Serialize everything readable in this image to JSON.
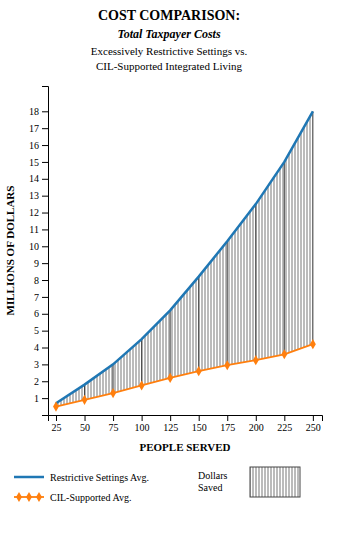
{
  "chart_data": {
    "type": "line",
    "title": "COST COMPARISON:",
    "subtitle": [
      "Total Taxpayer Costs",
      "Excessively Restrictive Settings vs.",
      "CIL-Supported Integrated Living"
    ],
    "x_label": "PEOPLE SERVED",
    "y_label": "MILLIONS OF DOLLARS",
    "x": [
      25,
      50,
      75,
      100,
      125,
      150,
      175,
      200,
      225,
      250
    ],
    "series": [
      {
        "name": "Restrictive Settings Avg.",
        "values": [
          0.7,
          1.8,
          3.0,
          4.5,
          6.2,
          8.2,
          10.3,
          12.5,
          15.0,
          18.0
        ]
      },
      {
        "name": "CIL-Supported Avg.",
        "marker": "diamond",
        "values": [
          0.5,
          0.9,
          1.3,
          1.75,
          2.2,
          2.6,
          2.95,
          3.25,
          3.6,
          4.2
        ]
      }
    ],
    "annotations": [
      "Dollars\nSaved"
    ],
    "xlim": [
      18,
      258
    ],
    "ylim": [
      0,
      19.5
    ],
    "xticks": [
      25,
      50,
      75,
      100,
      125,
      150,
      175,
      200,
      225,
      250
    ],
    "yticks": [
      1,
      2,
      3,
      4,
      5,
      6,
      7,
      8,
      9,
      10,
      11,
      12,
      13,
      14,
      15,
      16,
      17,
      18
    ],
    "grid": false,
    "legend": "bottom"
  }
}
